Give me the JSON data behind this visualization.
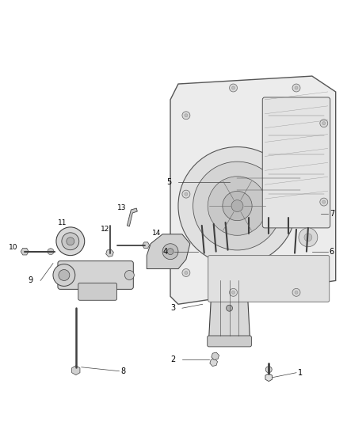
{
  "background_color": "#ffffff",
  "fig_width": 4.38,
  "fig_height": 5.33,
  "dpi": 100,
  "line_color": "#404040",
  "label_fontsize": 7.0,
  "text_color": "#000000"
}
